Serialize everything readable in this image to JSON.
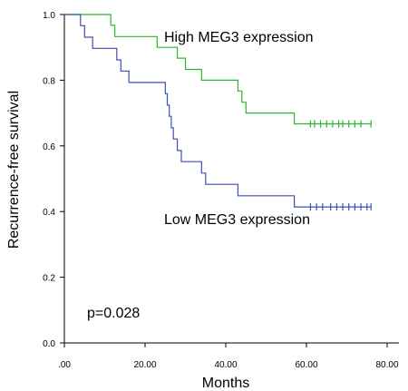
{
  "chart_data": {
    "type": "line",
    "subtype": "kaplan-meier",
    "title": "",
    "xlabel": "Months",
    "ylabel": "Recurrence-free survival",
    "xlim": [
      0,
      80
    ],
    "ylim": [
      0,
      1.0
    ],
    "x_ticks": [
      0,
      20,
      40,
      60,
      80
    ],
    "x_tick_labels": [
      ".00",
      "20.00",
      "40.00",
      "60.00",
      "80.00"
    ],
    "y_ticks": [
      0,
      0.2,
      0.4,
      0.6,
      0.8,
      1.0
    ],
    "y_tick_labels": [
      "0.0",
      "0.2",
      "0.4",
      "0.6",
      "0.8",
      "1.0"
    ],
    "grid": false,
    "series": [
      {
        "name": "High MEG3 expression",
        "color": "#2fb52f",
        "steps": [
          [
            0,
            1.0
          ],
          [
            11.5,
            0.967
          ],
          [
            12.5,
            0.933
          ],
          [
            23,
            0.9
          ],
          [
            28,
            0.867
          ],
          [
            30,
            0.833
          ],
          [
            34,
            0.8
          ],
          [
            43,
            0.767
          ],
          [
            44,
            0.733
          ],
          [
            45,
            0.7
          ],
          [
            57,
            0.667
          ],
          [
            76,
            0.667
          ]
        ],
        "censored": [
          61,
          62,
          63.5,
          65,
          66.5,
          68,
          69,
          70.5,
          72,
          73.5,
          76
        ]
      },
      {
        "name": "Low MEG3 expression",
        "color": "#3b4fb5",
        "steps": [
          [
            0,
            1.0
          ],
          [
            4,
            0.966
          ],
          [
            5,
            0.931
          ],
          [
            7,
            0.897
          ],
          [
            13,
            0.862
          ],
          [
            14,
            0.828
          ],
          [
            16,
            0.793
          ],
          [
            25,
            0.759
          ],
          [
            25.5,
            0.724
          ],
          [
            26,
            0.69
          ],
          [
            26.5,
            0.655
          ],
          [
            27,
            0.621
          ],
          [
            28,
            0.586
          ],
          [
            29,
            0.552
          ],
          [
            34,
            0.517
          ],
          [
            35,
            0.483
          ],
          [
            43,
            0.448
          ],
          [
            57,
            0.414
          ],
          [
            76,
            0.414
          ]
        ],
        "censored": [
          61,
          62.5,
          64,
          66,
          67.5,
          69,
          70.5,
          72,
          73.5,
          75,
          76
        ]
      }
    ],
    "annotations": [
      "p=0.028"
    ]
  }
}
